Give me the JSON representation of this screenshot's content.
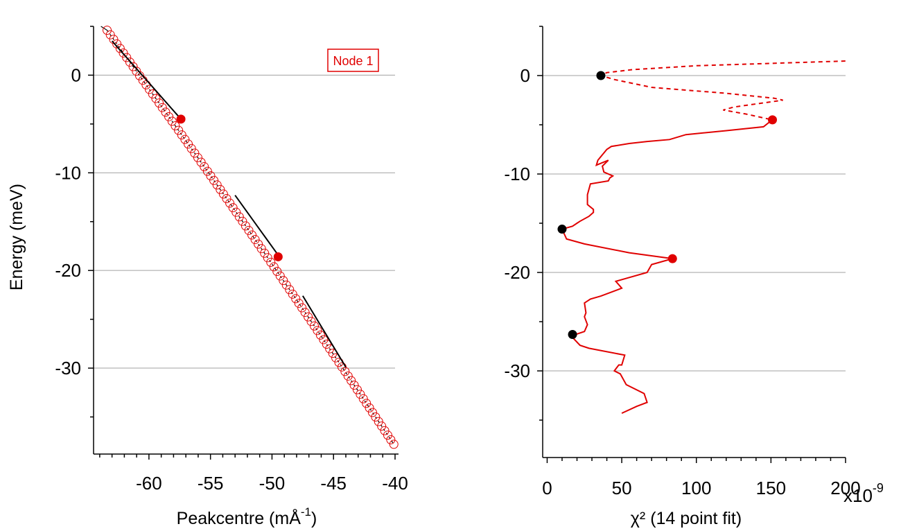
{
  "chart_data": [
    {
      "type": "scatter",
      "name": "peakcentre-vs-energy",
      "xlabel": "Peakcentre (mÅ",
      "xlabel_superscript": "-1",
      "xlabel_close": ")",
      "ylabel": "Energy (meV)",
      "xlim": [
        -64.5,
        -40
      ],
      "ylim": [
        -38.8,
        5
      ],
      "xticks": [
        -60,
        -55,
        -50,
        -45,
        -40
      ],
      "xtick_labels": [
        "-60",
        "-55",
        "-50",
        "-45",
        "-40"
      ],
      "yticks": [
        0,
        -10,
        -20,
        -30
      ],
      "ytick_labels": [
        "0",
        "-10",
        "-20",
        "-30"
      ],
      "grid": "horizontal at y ticks",
      "legend": {
        "label": "Node 1",
        "placement": "top-right",
        "color": "#e00000"
      },
      "series": [
        {
          "name": "data",
          "style": "open red circles with black dashed connecting line",
          "color": "#e00000",
          "x_start": -63.4,
          "x_end": -40.1,
          "y_start": 4.6,
          "y_end": -37.8,
          "n_points": 92
        },
        {
          "name": "linear fit 1",
          "style": "solid black",
          "color": "#000000",
          "x": [
            -63.0,
            -57.4
          ],
          "y": [
            3.5,
            -4.5
          ]
        },
        {
          "name": "linear fit 2",
          "style": "solid black",
          "color": "#000000",
          "x": [
            -53.0,
            -49.4
          ],
          "y": [
            -12.3,
            -18.6
          ]
        },
        {
          "name": "linear fit 3",
          "style": "solid black",
          "color": "#000000",
          "x": [
            -47.5,
            -44.0
          ],
          "y": [
            -22.6,
            -29.9
          ]
        },
        {
          "name": "node points",
          "style": "filled red dots",
          "color": "#e00000",
          "x": [
            -57.4,
            -49.5
          ],
          "y": [
            -4.5,
            -18.6
          ]
        }
      ]
    },
    {
      "type": "line",
      "name": "chi2-vs-energy",
      "xlabel": "χ² (14 point fit)",
      "x_multiplier_label": "x10",
      "x_multiplier_exp": "-9",
      "ylabel": "",
      "xlim": [
        -3,
        200
      ],
      "ylim": [
        -38.8,
        5
      ],
      "xticks": [
        0,
        50,
        100,
        150,
        200
      ],
      "xtick_labels": [
        "0",
        "50",
        "100",
        "150",
        "200"
      ],
      "yticks": [
        0,
        -10,
        -20,
        -30
      ],
      "ytick_labels": [
        "0",
        "-10",
        "-20",
        "-30"
      ],
      "grid": "horizontal at y ticks",
      "series": [
        {
          "name": "chi2 dashed",
          "style": "dashed red",
          "color": "#e00000",
          "x": [
            205,
            100,
            57,
            40,
            36,
            45,
            70,
            120,
            152,
            158,
            125,
            118,
            133,
            151
          ],
          "y": [
            1.5,
            1.0,
            0.6,
            0.3,
            0.0,
            -0.4,
            -1.2,
            -1.8,
            -2.3,
            -2.5,
            -3.2,
            -3.5,
            -3.9,
            -4.5
          ]
        },
        {
          "name": "chi2 solid",
          "style": "solid red",
          "color": "#e00000",
          "x": [
            151,
            150,
            145,
            120,
            93,
            82,
            67,
            55,
            43,
            40,
            34,
            33,
            41,
            37,
            38,
            44,
            42,
            41,
            29,
            27,
            27,
            31,
            31,
            28,
            22,
            20,
            17,
            10,
            13,
            25,
            55,
            84,
            70,
            67,
            53,
            46,
            50,
            36,
            29,
            25,
            26,
            25,
            27,
            25,
            19,
            17,
            22,
            28,
            52,
            50,
            48,
            45,
            49,
            53,
            65,
            67,
            60,
            50
          ],
          "y": [
            -4.5,
            -4.6,
            -5.2,
            -5.6,
            -6.0,
            -6.5,
            -6.7,
            -6.9,
            -7.2,
            -7.5,
            -8.6,
            -9.1,
            -8.6,
            -9.2,
            -9.8,
            -10.2,
            -10.4,
            -10.7,
            -11.0,
            -12.1,
            -13.1,
            -13.6,
            -13.9,
            -14.3,
            -14.8,
            -15.0,
            -15.3,
            -15.6,
            -16.6,
            -17.1,
            -18.0,
            -18.6,
            -19.2,
            -20.0,
            -20.6,
            -20.9,
            -21.6,
            -22.4,
            -22.7,
            -23.1,
            -24.1,
            -24.5,
            -25.3,
            -26.0,
            -26.3,
            -26.6,
            -27.4,
            -27.7,
            -28.4,
            -29.4,
            -29.4,
            -30.0,
            -30.3,
            -31.4,
            -32.3,
            -33.2,
            -33.6,
            -34.3
          ]
        },
        {
          "name": "black points",
          "style": "filled black dots",
          "color": "#000000",
          "x": [
            36,
            10,
            17
          ],
          "y": [
            0.0,
            -15.6,
            -26.3
          ]
        },
        {
          "name": "red points",
          "style": "filled red dots",
          "color": "#e00000",
          "x": [
            151,
            84
          ],
          "y": [
            -4.5,
            -18.6
          ]
        }
      ]
    }
  ]
}
